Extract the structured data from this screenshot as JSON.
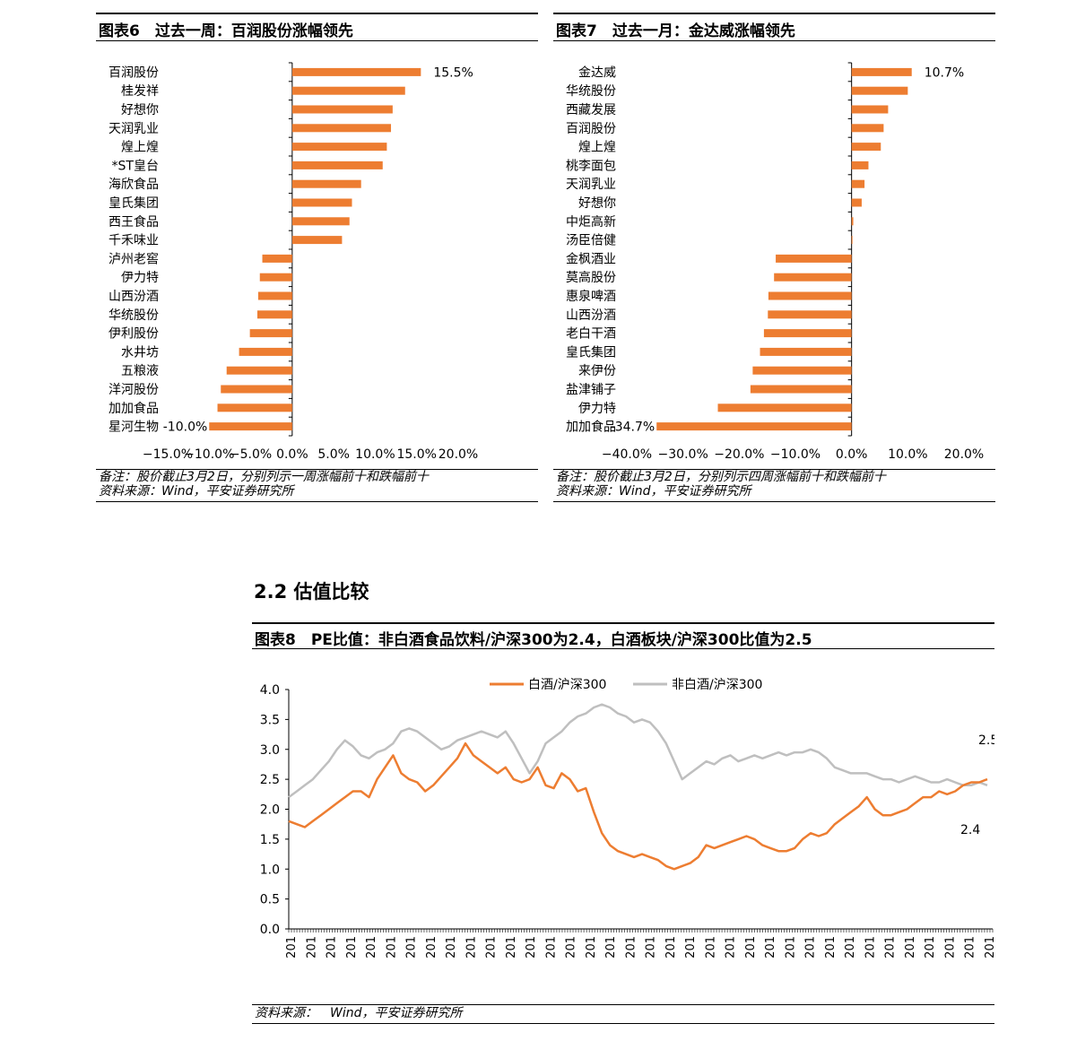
{
  "fig6": {
    "title": "图表6　过去一周：百润股份涨幅领先",
    "note": "备注：股价截止3月2日，分别列示一周涨幅前十和跌幅前十",
    "source": "资料来源：Wind，平安证券研究所"
  },
  "fig7": {
    "title": "图表7　过去一月：金达威涨幅领先",
    "note": "备注：股价截止3月2日，分别列示四周涨幅前十和跌幅前十",
    "source": "资料来源：Wind，平安证券研究所"
  },
  "section": {
    "title": "2.2 估值比较"
  },
  "fig8": {
    "title": "图表8　PE比值：非白酒食品饮料/沪深300为2.4，白酒板块/沪深300比值为2.5",
    "source": "资料来源：　Wind，平安证券研究所"
  },
  "chart_data": [
    {
      "type": "bar",
      "orientation": "horizontal",
      "categories": [
        "百润股份",
        "桂发祥",
        "好想你",
        "天润乳业",
        "煌上煌",
        "*ST皇台",
        "海欣食品",
        "皇氏集团",
        "西王食品",
        "千禾味业",
        "泸州老窖",
        "伊力特",
        "山西汾酒",
        "华统股份",
        "伊利股份",
        "水井坊",
        "五粮液",
        "洋河股份",
        "加加食品",
        "星河生物"
      ],
      "values": [
        15.5,
        13.6,
        12.1,
        11.9,
        11.4,
        10.9,
        8.3,
        7.2,
        6.9,
        6.0,
        -3.6,
        -3.9,
        -4.1,
        -4.2,
        -5.1,
        -6.4,
        -7.9,
        -8.6,
        -9.0,
        -10.0
      ],
      "data_labels": {
        "0": "15.5%",
        "19": "-10.0%"
      },
      "xlim": [
        -15,
        20
      ],
      "xticks": [
        "−15.0%",
        "−10.0%",
        "−5.0%",
        "0.0%",
        "5.0%",
        "10.0%",
        "15.0%",
        "20.0%"
      ],
      "color": "#ed7d31"
    },
    {
      "type": "bar",
      "orientation": "horizontal",
      "categories": [
        "金达威",
        "华统股份",
        "西藏发展",
        "百润股份",
        "煌上煌",
        "桃李面包",
        "天润乳业",
        "好想你",
        "中炬高新",
        "汤臣倍健",
        "金枫酒业",
        "莫高股份",
        "惠泉啤酒",
        "山西汾酒",
        "老白干酒",
        "皇氏集团",
        "来伊份",
        "盐津铺子",
        "伊力特",
        "加加食品"
      ],
      "values": [
        10.7,
        10.0,
        6.5,
        5.7,
        5.2,
        3.0,
        2.3,
        1.8,
        0.3,
        0.1,
        -13.5,
        -13.8,
        -14.8,
        -14.9,
        -15.6,
        -16.3,
        -17.6,
        -18.0,
        -23.8,
        -34.7
      ],
      "data_labels": {
        "0": "10.7%",
        "19": "-34.7%"
      },
      "xlim": [
        -40,
        20
      ],
      "xticks": [
        "−40.0%",
        "−30.0%",
        "−20.0%",
        "−10.0%",
        "0.0%",
        "10.0%",
        "20.0%"
      ],
      "color": "#ed7d31"
    },
    {
      "type": "line",
      "ylim": [
        0,
        4
      ],
      "yticks": [
        "0.0",
        "0.5",
        "1.0",
        "1.5",
        "2.0",
        "2.5",
        "3.0",
        "3.5",
        "4.0"
      ],
      "xtick_label": "201",
      "xtick_count": 36,
      "legend_placement": "top",
      "end_labels": {
        "baijiu": "2.5",
        "non_baijiu": "2.4"
      },
      "series": [
        {
          "name": "白酒/沪深300",
          "color": "#ed7d31",
          "values": [
            1.8,
            1.75,
            1.7,
            1.8,
            1.9,
            2.0,
            2.1,
            2.2,
            2.3,
            2.3,
            2.2,
            2.5,
            2.7,
            2.9,
            2.6,
            2.5,
            2.45,
            2.3,
            2.4,
            2.55,
            2.7,
            2.85,
            3.1,
            2.9,
            2.8,
            2.7,
            2.6,
            2.7,
            2.5,
            2.45,
            2.5,
            2.7,
            2.4,
            2.35,
            2.6,
            2.5,
            2.3,
            2.35,
            1.95,
            1.6,
            1.4,
            1.3,
            1.25,
            1.2,
            1.25,
            1.2,
            1.15,
            1.05,
            1.0,
            1.05,
            1.1,
            1.2,
            1.4,
            1.35,
            1.4,
            1.45,
            1.5,
            1.55,
            1.5,
            1.4,
            1.35,
            1.3,
            1.3,
            1.35,
            1.5,
            1.6,
            1.55,
            1.6,
            1.75,
            1.85,
            1.95,
            2.05,
            2.2,
            2.0,
            1.9,
            1.9,
            1.95,
            2.0,
            2.1,
            2.2,
            2.2,
            2.3,
            2.25,
            2.3,
            2.4,
            2.45,
            2.45,
            2.5
          ]
        },
        {
          "name": "非白酒/沪深300",
          "color": "#bfbfbf",
          "values": [
            2.2,
            2.3,
            2.4,
            2.5,
            2.65,
            2.8,
            3.0,
            3.15,
            3.05,
            2.9,
            2.85,
            2.95,
            3.0,
            3.1,
            3.3,
            3.35,
            3.3,
            3.2,
            3.1,
            3.0,
            3.05,
            3.15,
            3.2,
            3.25,
            3.3,
            3.25,
            3.2,
            3.3,
            3.1,
            2.85,
            2.6,
            2.8,
            3.1,
            3.2,
            3.3,
            3.45,
            3.55,
            3.6,
            3.7,
            3.75,
            3.7,
            3.6,
            3.55,
            3.45,
            3.5,
            3.45,
            3.3,
            3.1,
            2.8,
            2.5,
            2.6,
            2.7,
            2.8,
            2.75,
            2.85,
            2.9,
            2.8,
            2.85,
            2.9,
            2.85,
            2.9,
            2.95,
            2.9,
            2.95,
            2.95,
            3.0,
            2.95,
            2.85,
            2.7,
            2.65,
            2.6,
            2.6,
            2.6,
            2.55,
            2.5,
            2.5,
            2.45,
            2.5,
            2.55,
            2.5,
            2.45,
            2.45,
            2.5,
            2.45,
            2.4,
            2.4,
            2.45,
            2.4
          ]
        }
      ]
    }
  ]
}
